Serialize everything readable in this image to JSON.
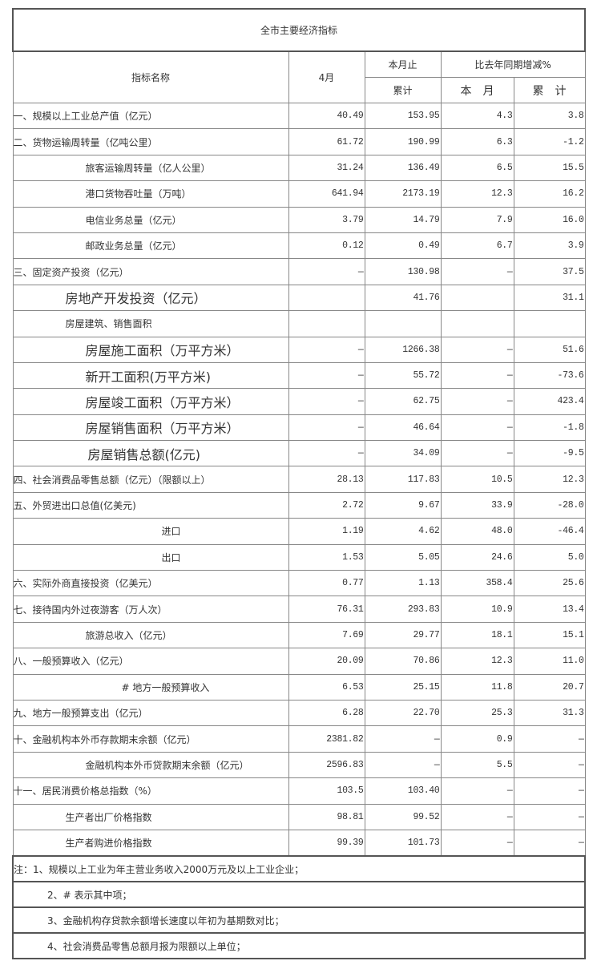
{
  "title": "全市主要经济指标",
  "header": {
    "name": "指标名称",
    "month": "4月",
    "cumulative_top": "本月止",
    "cumulative_bottom": "累计",
    "yoy": "比去年同期增减%",
    "yoy_month": "本　月",
    "yoy_cumulative": "累　计"
  },
  "rows": [
    {
      "label": "一、规模以上工业总产值（亿元）",
      "month": "40.49",
      "cum": "153.95",
      "yoy_m": "4.3",
      "yoy_c": "3.8"
    },
    {
      "label": "二、货物运输周转量（亿吨公里）",
      "month": "61.72",
      "cum": "190.99",
      "yoy_m": "6.3",
      "yoy_c": "-1.2"
    },
    {
      "label": "旅客运输周转量（亿人公里）",
      "month": "31.24",
      "cum": "136.49",
      "yoy_m": "6.5",
      "yoy_c": "15.5"
    },
    {
      "label": "港口货物吞吐量（万吨）",
      "month": "641.94",
      "cum": "2173.19",
      "yoy_m": "12.3",
      "yoy_c": "16.2"
    },
    {
      "label": "电信业务总量（亿元）",
      "month": "3.79",
      "cum": "14.79",
      "yoy_m": "7.9",
      "yoy_c": "16.0"
    },
    {
      "label": "邮政业务总量（亿元）",
      "month": "0.12",
      "cum": "0.49",
      "yoy_m": "6.7",
      "yoy_c": "3.9"
    },
    {
      "label": "三、固定资产投资（亿元）",
      "month": "—",
      "cum": "130.98",
      "yoy_m": "—",
      "yoy_c": "37.5"
    },
    {
      "label": "房地产开发投资（亿元）",
      "month": "",
      "cum": "41.76",
      "yoy_m": "",
      "yoy_c": "31.1"
    },
    {
      "label": "房屋建筑、销售面积",
      "month": "",
      "cum": "",
      "yoy_m": "",
      "yoy_c": ""
    },
    {
      "label": "房屋施工面积（万平方米）",
      "month": "—",
      "cum": "1266.38",
      "yoy_m": "—",
      "yoy_c": "51.6"
    },
    {
      "label": "新开工面积(万平方米)",
      "month": "—",
      "cum": "55.72",
      "yoy_m": "—",
      "yoy_c": "-73.6"
    },
    {
      "label": "房屋竣工面积（万平方米）",
      "month": "—",
      "cum": "62.75",
      "yoy_m": "—",
      "yoy_c": "423.4"
    },
    {
      "label": "房屋销售面积（万平方米）",
      "month": "—",
      "cum": "46.64",
      "yoy_m": "—",
      "yoy_c": "-1.8"
    },
    {
      "label": "房屋销售总额(亿元)",
      "month": "—",
      "cum": "34.09",
      "yoy_m": "—",
      "yoy_c": "-9.5"
    },
    {
      "label": "四、社会消费品零售总额（亿元）（限额以上）",
      "month": "28.13",
      "cum": "117.83",
      "yoy_m": "10.5",
      "yoy_c": "12.3"
    },
    {
      "label": "五、外贸进出口总值(亿美元)",
      "month": "2.72",
      "cum": "9.67",
      "yoy_m": "33.9",
      "yoy_c": "-28.0"
    },
    {
      "label": "进口",
      "month": "1.19",
      "cum": "4.62",
      "yoy_m": "48.0",
      "yoy_c": "-46.4"
    },
    {
      "label": "出口",
      "month": "1.53",
      "cum": "5.05",
      "yoy_m": "24.6",
      "yoy_c": "5.0"
    },
    {
      "label": "六、实际外商直接投资（亿美元）",
      "month": "0.77",
      "cum": "1.13",
      "yoy_m": "358.4",
      "yoy_c": "25.6"
    },
    {
      "label": "七、接待国内外过夜游客（万人次）",
      "month": "76.31",
      "cum": "293.83",
      "yoy_m": "10.9",
      "yoy_c": "13.4"
    },
    {
      "label": "旅游总收入（亿元）",
      "month": "7.69",
      "cum": "29.77",
      "yoy_m": "18.1",
      "yoy_c": "15.1"
    },
    {
      "label": "八、一般预算收入（亿元）",
      "month": "20.09",
      "cum": "70.86",
      "yoy_m": "12.3",
      "yoy_c": "11.0"
    },
    {
      "label": "# 地方一般预算收入",
      "month": "6.53",
      "cum": "25.15",
      "yoy_m": "11.8",
      "yoy_c": "20.7"
    },
    {
      "label": "九、地方一般预算支出（亿元）",
      "month": "6.28",
      "cum": "22.70",
      "yoy_m": "25.3",
      "yoy_c": "31.3"
    },
    {
      "label": "十、金融机构本外币存款期末余额（亿元）",
      "month": "2381.82",
      "cum": "—",
      "yoy_m": "0.9",
      "yoy_c": "—"
    },
    {
      "label": "金融机构本外币贷款期末余额（亿元）",
      "month": "2596.83",
      "cum": "—",
      "yoy_m": "5.5",
      "yoy_c": "—"
    },
    {
      "label": "十一、居民消费价格总指数（%）",
      "month": "103.5",
      "cum": "103.40",
      "yoy_m": "—",
      "yoy_c": "—"
    },
    {
      "label": "生产者出厂价格指数",
      "month": "98.81",
      "cum": "99.52",
      "yoy_m": "—",
      "yoy_c": "—"
    },
    {
      "label": "生产者购进价格指数",
      "month": "99.39",
      "cum": "101.73",
      "yoy_m": "—",
      "yoy_c": "—"
    }
  ],
  "notes": [
    "注：1、规模以上工业为年主营业务收入2000万元及以上工业企业；",
    "2、# 表示其中项；",
    "3、金融机构存贷款余额增长速度以年初为基期数对比；",
    "4、社会消费品零售总额月报为限额以上单位；"
  ]
}
